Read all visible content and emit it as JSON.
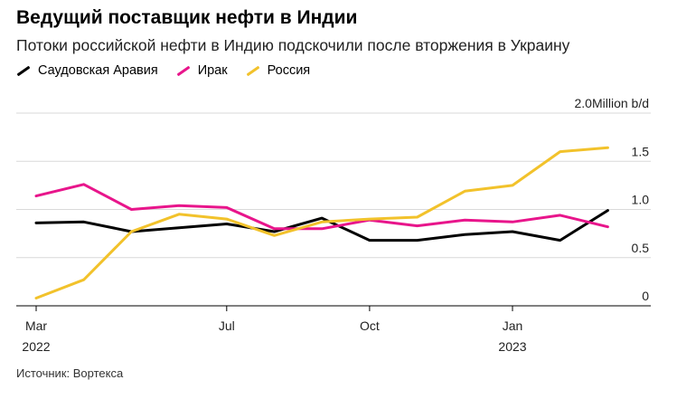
{
  "header": {
    "title": "Ведущий поставщик нефти в Индии",
    "subtitle": "Потоки российской нефти в Индию подскочили после вторжения в Украину"
  },
  "source": "Источник: Вортекса",
  "chart_data": {
    "type": "line",
    "title": "Ведущий поставщик нефти в Индии",
    "subtitle": "Потоки российской нефти в Индию подскочили после вторжения в Украину",
    "unit": "Million b/d",
    "x": [
      "2022-03",
      "2022-04",
      "2022-05",
      "2022-06",
      "2022-07",
      "2022-08",
      "2022-09",
      "2022-10",
      "2022-11",
      "2022-12",
      "2023-01",
      "2023-02",
      "2023-03",
      "2023-04"
    ],
    "x_ticks": [
      {
        "index": 0,
        "label": "Mar",
        "year": "2022"
      },
      {
        "index": 4,
        "label": "Jul",
        "year": ""
      },
      {
        "index": 7,
        "label": "Oct",
        "year": ""
      },
      {
        "index": 10,
        "label": "Jan",
        "year": "2023"
      }
    ],
    "y_ticks": [
      {
        "value": 0,
        "label": "0"
      },
      {
        "value": 0.5,
        "label": "0.5"
      },
      {
        "value": 1.0,
        "label": "1.0"
      },
      {
        "value": 1.5,
        "label": "1.5"
      },
      {
        "value": 2.0,
        "label": "2.0Million b/d"
      }
    ],
    "ylim": [
      0,
      2.0
    ],
    "grid": true,
    "legend_position": "top-left",
    "series": [
      {
        "name": "Саудовская Аравия",
        "color": "#000000",
        "values": [
          0.86,
          0.87,
          0.77,
          0.81,
          0.85,
          0.77,
          0.91,
          0.68,
          0.68,
          0.74,
          0.77,
          0.68,
          0.99,
          null
        ]
      },
      {
        "name": "Ирак",
        "color": "#e8158b",
        "values": [
          1.14,
          1.26,
          1.0,
          1.04,
          1.02,
          0.8,
          0.8,
          0.89,
          0.83,
          0.89,
          0.87,
          0.94,
          0.82,
          null
        ]
      },
      {
        "name": "Россия",
        "color": "#f2c22b",
        "values": [
          0.08,
          0.27,
          0.77,
          0.95,
          0.9,
          0.73,
          0.87,
          0.9,
          0.92,
          1.19,
          1.25,
          1.6,
          1.64,
          null
        ]
      }
    ]
  }
}
